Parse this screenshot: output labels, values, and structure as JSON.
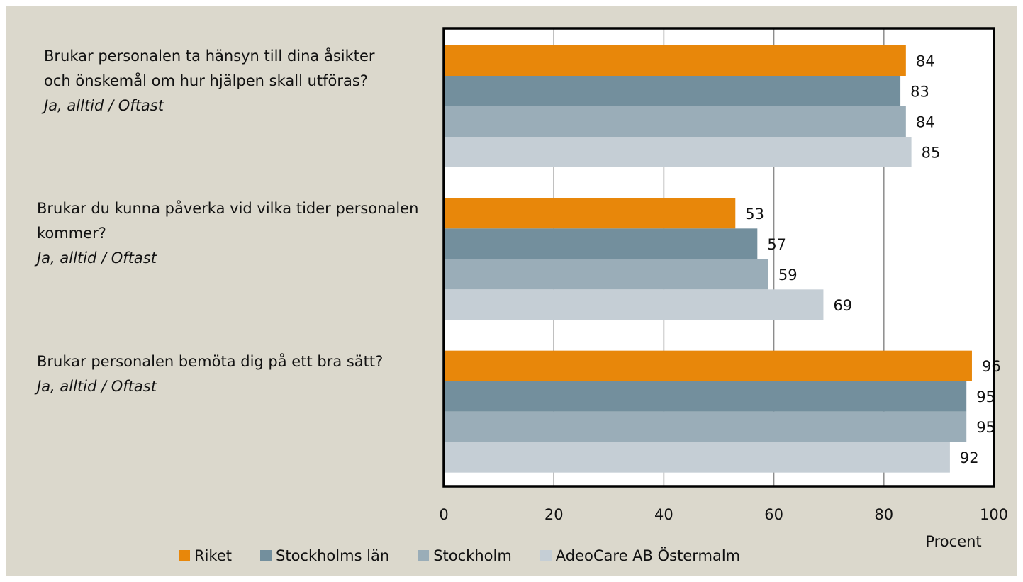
{
  "chart_data": {
    "type": "barh",
    "categories": [
      "Brukar personalen ta hänsyn till dina åsikter och önskemål om hur hjälpen skall utföras?",
      "Brukar du kunna påverka vid vilka tider personalen kommer?",
      "Brukar personalen bemöta dig på ett bra sätt?"
    ],
    "category_notes": [
      "Ja, alltid / Oftast",
      "Ja, alltid / Oftast",
      "Ja, alltid / Oftast"
    ],
    "series": [
      {
        "name": "Riket",
        "color": "#e8870a",
        "values": [
          84,
          53,
          96
        ]
      },
      {
        "name": "Stockholms län",
        "color": "#738f9d",
        "values": [
          83,
          57,
          95
        ]
      },
      {
        "name": "Stockholm",
        "color": "#9aadb8",
        "values": [
          84,
          59,
          95
        ]
      },
      {
        "name": "AdeoCare AB Östermalm",
        "color": "#c5ced5",
        "values": [
          85,
          69,
          92
        ]
      }
    ],
    "xlabel": "Procent",
    "xlim": [
      0,
      100
    ],
    "xticks": [
      0,
      20,
      40,
      60,
      80,
      100
    ],
    "grid": true,
    "legend": "bottom"
  }
}
